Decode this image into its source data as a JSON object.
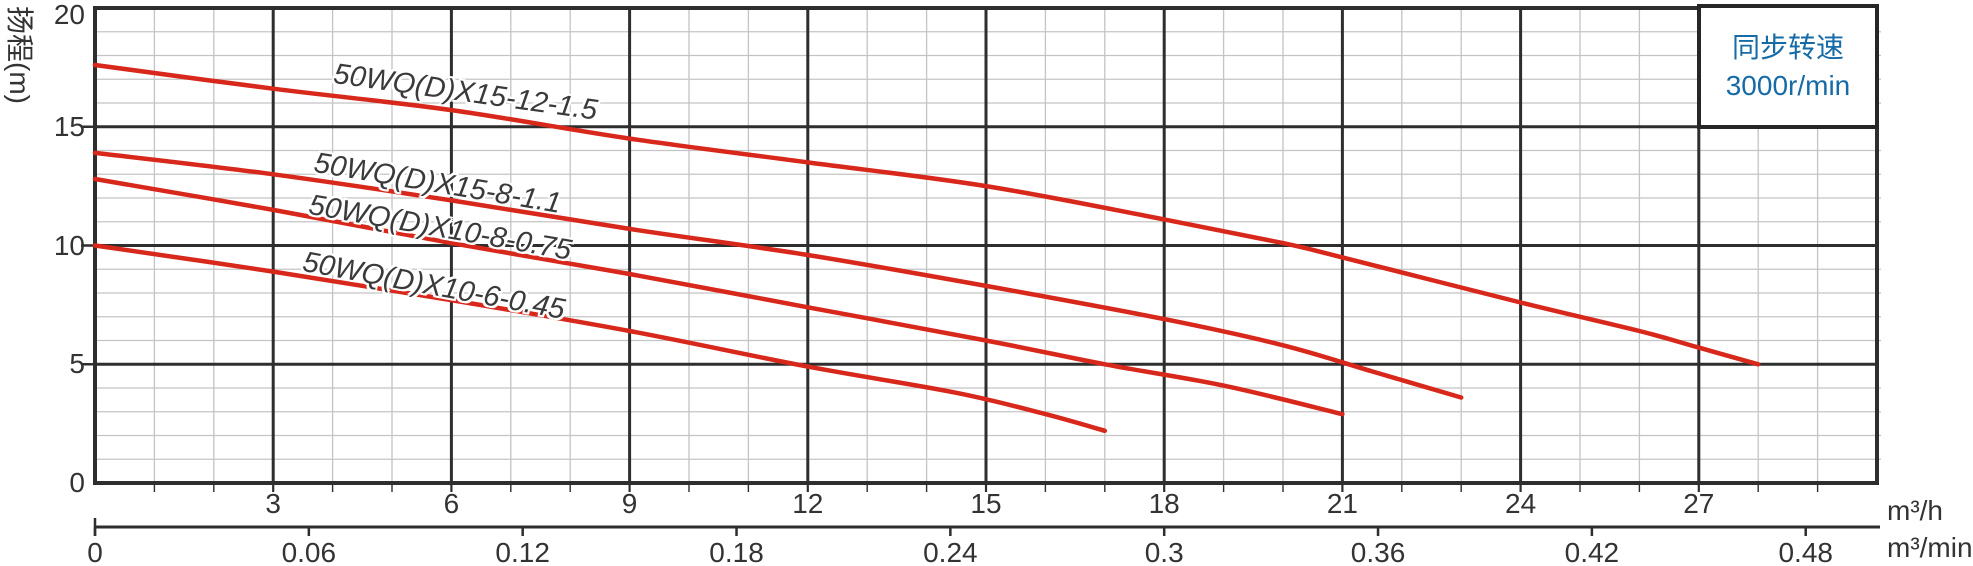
{
  "chart_data": {
    "type": "line",
    "title": "",
    "ylabel": "扬程(m)",
    "y_axis": {
      "unit": "m",
      "range": [
        0,
        20
      ],
      "major_step": 5,
      "minor_step": 1,
      "tick_labels": [
        "20",
        "15",
        "10",
        "5",
        "0"
      ],
      "tick_values": [
        20,
        15,
        10,
        5,
        0
      ]
    },
    "x_axis_primary": {
      "unit": "m³/h",
      "range": [
        0,
        30
      ],
      "major_step": 3,
      "minor_step": 1,
      "tick_labels": [
        "3",
        "6",
        "9",
        "12",
        "15",
        "18",
        "21",
        "24",
        "27"
      ],
      "tick_values": [
        3,
        6,
        9,
        12,
        15,
        18,
        21,
        24,
        27
      ]
    },
    "x_axis_secondary": {
      "unit": "m³/min",
      "range": [
        0,
        0.5
      ],
      "tick_labels": [
        "0",
        "0.06",
        "0.12",
        "0.18",
        "0.24",
        "0.3",
        "0.36",
        "0.42",
        "0.48"
      ],
      "tick_values": [
        0,
        0.06,
        0.12,
        0.18,
        0.24,
        0.3,
        0.36,
        0.42,
        0.48
      ]
    },
    "grid": {
      "major": true,
      "minor": true
    },
    "legend": {
      "position": "top-right",
      "line1": "同步转速",
      "line2": "3000r/min"
    },
    "series": [
      {
        "name": "50WQ(D)X15-12-1.5",
        "points": [
          [
            0,
            17.6
          ],
          [
            3,
            16.6
          ],
          [
            6,
            15.7
          ],
          [
            9,
            14.5
          ],
          [
            12,
            13.5
          ],
          [
            15,
            12.5
          ],
          [
            18,
            11.1
          ],
          [
            20,
            10.1
          ],
          [
            21,
            9.5
          ],
          [
            24,
            7.6
          ],
          [
            26,
            6.4
          ],
          [
            27,
            5.7
          ],
          [
            28,
            5.0
          ]
        ]
      },
      {
        "name": "50WQ(D)X15-8-1.1",
        "points": [
          [
            0,
            13.9
          ],
          [
            3,
            13.0
          ],
          [
            6,
            11.9
          ],
          [
            9,
            10.7
          ],
          [
            12,
            9.6
          ],
          [
            15,
            8.3
          ],
          [
            18,
            6.9
          ],
          [
            20,
            5.8
          ],
          [
            21.5,
            4.7
          ],
          [
            23,
            3.6
          ]
        ]
      },
      {
        "name": "50WQ(D)X10-8-0.75",
        "points": [
          [
            0,
            12.8
          ],
          [
            3,
            11.5
          ],
          [
            6,
            10.1
          ],
          [
            9,
            8.8
          ],
          [
            12,
            7.4
          ],
          [
            15,
            6.0
          ],
          [
            17,
            5.0
          ],
          [
            19,
            4.1
          ],
          [
            21,
            2.9
          ]
        ]
      },
      {
        "name": "50WQ(D)X10-6-0.45",
        "points": [
          [
            0,
            10.0
          ],
          [
            3,
            8.9
          ],
          [
            6,
            7.7
          ],
          [
            9,
            6.4
          ],
          [
            12,
            4.9
          ],
          [
            14.5,
            3.8
          ],
          [
            16,
            2.9
          ],
          [
            17,
            2.2
          ]
        ]
      }
    ]
  },
  "colors": {
    "curve": "#d8271b",
    "grid_major": "#2e2e2e",
    "grid_minor": "#c4c4c4",
    "text": "#333333",
    "legend_text": "#166ba6",
    "background": "#ffffff"
  }
}
